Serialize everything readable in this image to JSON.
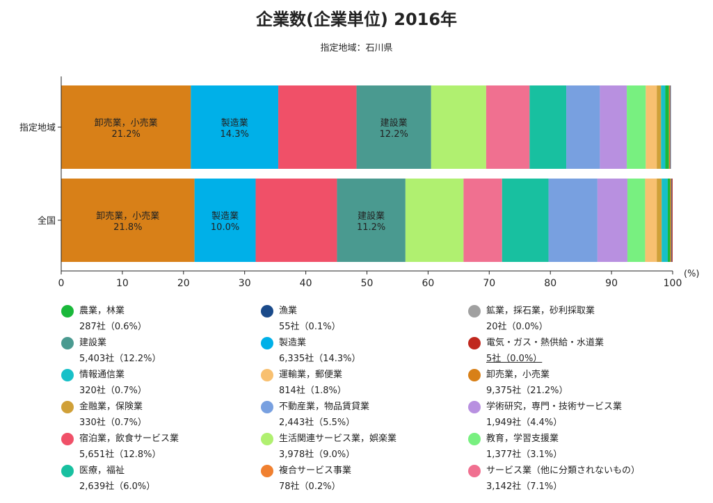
{
  "chart_data": {
    "type": "bar",
    "orientation": "horizontal",
    "stacked": true,
    "title": "企業数(企業単位) 2016年",
    "subtitle": "指定地域：石川県",
    "categories": [
      "指定地域",
      "全国"
    ],
    "xlabel": "(%)",
    "xlim": [
      0,
      100
    ],
    "xticks": [
      "0",
      "10",
      "20",
      "30",
      "40",
      "50",
      "60",
      "70",
      "80",
      "90",
      "100"
    ],
    "grid": false,
    "legend_position": "bottom",
    "series": [
      {
        "name": "卸売業，小売業",
        "color": "#d88018",
        "values": [
          21.2,
          21.8
        ]
      },
      {
        "name": "製造業",
        "color": "#00b0e8",
        "values": [
          14.3,
          10.0
        ]
      },
      {
        "name": "宿泊業，飲食サービス業",
        "color": "#f05068",
        "values": [
          12.8,
          13.3
        ]
      },
      {
        "name": "建設業",
        "color": "#4a9a90",
        "values": [
          12.2,
          11.2
        ]
      },
      {
        "name": "生活関連サービス業，娯楽業",
        "color": "#b0f070",
        "values": [
          9.0,
          9.5
        ]
      },
      {
        "name": "サービス業（他に分類されないもの）",
        "color": "#f07090",
        "values": [
          7.1,
          6.3
        ]
      },
      {
        "name": "医療，福祉",
        "color": "#18c0a0",
        "values": [
          6.0,
          7.6
        ]
      },
      {
        "name": "不動産業，物品賃貸業",
        "color": "#78a0e0",
        "values": [
          5.5,
          8.0
        ]
      },
      {
        "name": "学術研究，専門・技術サービス業",
        "color": "#b890e0",
        "values": [
          4.4,
          4.9
        ]
      },
      {
        "name": "教育，学習支援業",
        "color": "#78f080",
        "values": [
          3.1,
          2.9
        ]
      },
      {
        "name": "運輸業，郵便業",
        "color": "#f8c070",
        "values": [
          1.8,
          1.9
        ]
      },
      {
        "name": "金融業，保険業",
        "color": "#d0a038",
        "values": [
          0.7,
          0.8
        ]
      },
      {
        "name": "情報通信業",
        "color": "#18c0c8",
        "values": [
          0.7,
          1.0
        ]
      },
      {
        "name": "農業，林業",
        "color": "#1ab83a",
        "values": [
          0.6,
          0.4
        ]
      },
      {
        "name": "複合サービス事業",
        "color": "#f08030",
        "values": [
          0.2,
          0.2
        ]
      },
      {
        "name": "漁業",
        "color": "#1a4a8a",
        "values": [
          0.1,
          0.1
        ]
      },
      {
        "name": "鉱業，採石業，砂利採取業",
        "color": "#a0a0a0",
        "values": [
          0.0,
          0.0
        ]
      },
      {
        "name": "電気・ガス・熱供給・水道業",
        "color": "#c0281e",
        "values": [
          0.0,
          0.1
        ]
      }
    ],
    "bar_labels": [
      {
        "bar": 0,
        "series": 0,
        "name": "卸売業，小売業",
        "value": "21.2%"
      },
      {
        "bar": 0,
        "series": 1,
        "name": "製造業",
        "value": "14.3%"
      },
      {
        "bar": 0,
        "series": 3,
        "name": "建設業",
        "value": "12.2%"
      },
      {
        "bar": 1,
        "series": 0,
        "name": "卸売業，小売業",
        "value": "21.8%"
      },
      {
        "bar": 1,
        "series": 1,
        "name": "製造業",
        "value": "10.0%"
      },
      {
        "bar": 1,
        "series": 3,
        "name": "建設業",
        "value": "11.2%"
      }
    ],
    "legend": [
      {
        "name": "農業，林業",
        "value": "287社（0.6%）",
        "color": "#1ab83a"
      },
      {
        "name": "漁業",
        "value": "55社（0.1%）",
        "color": "#1a4a8a"
      },
      {
        "name": "鉱業，採石業，砂利採取業",
        "value": "20社（0.0%）",
        "color": "#a0a0a0"
      },
      {
        "name": "建設業",
        "value": "5,403社（12.2%）",
        "color": "#4a9a90"
      },
      {
        "name": "製造業",
        "value": "6,335社（14.3%）",
        "color": "#00b0e8"
      },
      {
        "name": "電気・ガス・熱供給・水道業",
        "value": "5社（0.0%）",
        "color": "#c0281e",
        "hover": true
      },
      {
        "name": "情報通信業",
        "value": "320社（0.7%）",
        "color": "#18c0c8"
      },
      {
        "name": "運輸業，郵便業",
        "value": "814社（1.8%）",
        "color": "#f8c070"
      },
      {
        "name": "卸売業，小売業",
        "value": "9,375社（21.2%）",
        "color": "#d88018"
      },
      {
        "name": "金融業，保険業",
        "value": "330社（0.7%）",
        "color": "#d0a038"
      },
      {
        "name": "不動産業，物品賃貸業",
        "value": "2,443社（5.5%）",
        "color": "#78a0e0"
      },
      {
        "name": "学術研究，専門・技術サービス業",
        "value": "1,949社（4.4%）",
        "color": "#b890e0"
      },
      {
        "name": "宿泊業，飲食サービス業",
        "value": "5,651社（12.8%）",
        "color": "#f05068"
      },
      {
        "name": "生活関連サービス業，娯楽業",
        "value": "3,978社（9.0%）",
        "color": "#b0f070"
      },
      {
        "name": "教育，学習支援業",
        "value": "1,377社（3.1%）",
        "color": "#78f080"
      },
      {
        "name": "医療，福祉",
        "value": "2,639社（6.0%）",
        "color": "#18c0a0"
      },
      {
        "name": "複合サービス事業",
        "value": "78社（0.2%）",
        "color": "#f08030"
      },
      {
        "name": "サービス業（他に分類されないもの）",
        "value": "3,142社（7.1%）",
        "color": "#f07090"
      }
    ]
  }
}
